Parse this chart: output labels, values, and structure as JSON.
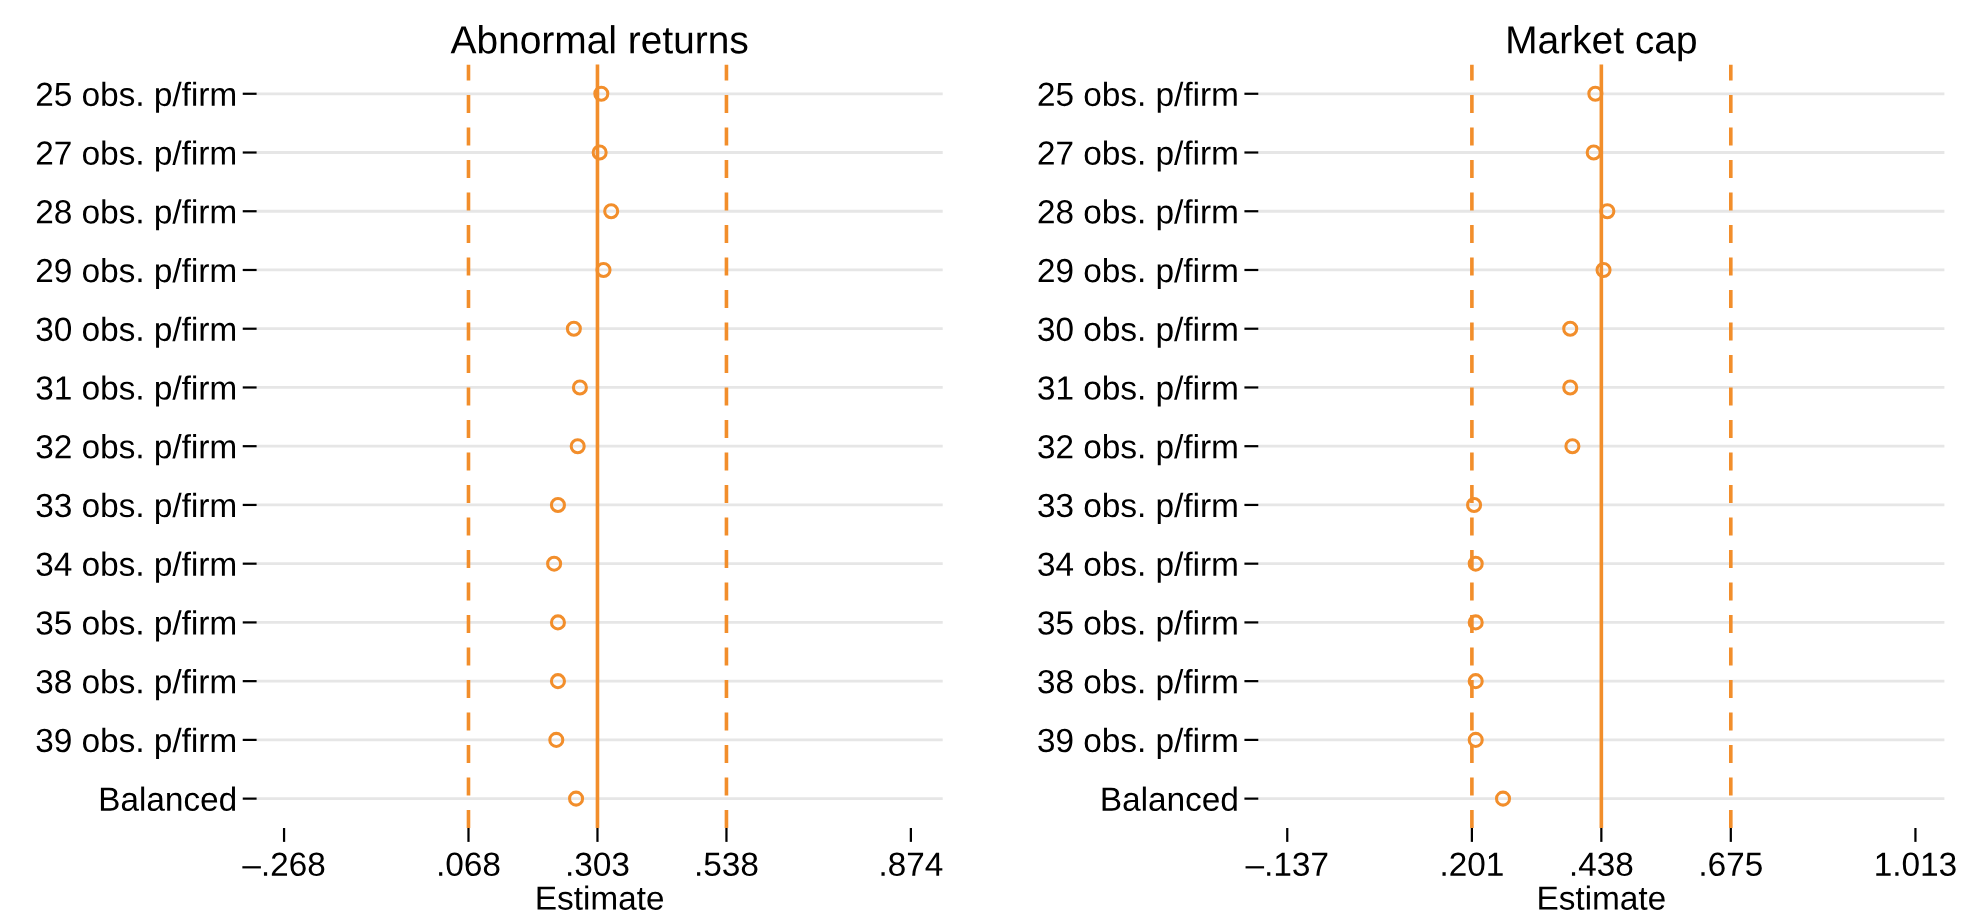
{
  "chart_data": [
    {
      "type": "scatter",
      "title": "Abnormal returns",
      "xlabel": "Estimate",
      "orientation": "horizontal",
      "marker": "circle",
      "grid": "y",
      "legend": false,
      "categories": [
        "25 obs. p/firm",
        "27 obs. p/firm",
        "28 obs. p/firm",
        "29 obs. p/firm",
        "30 obs. p/firm",
        "31 obs. p/firm",
        "32 obs. p/firm",
        "33 obs. p/firm",
        "34 obs. p/firm",
        "35 obs. p/firm",
        "38 obs. p/firm",
        "39 obs. p/firm",
        "Balanced"
      ],
      "series": [
        {
          "color": "#f28e2b",
          "values": [
            0.31,
            0.307,
            0.328,
            0.314,
            0.26,
            0.271,
            0.267,
            0.231,
            0.224,
            0.231,
            0.231,
            0.228,
            0.264
          ]
        }
      ],
      "xlim": [
        -0.318,
        0.932
      ],
      "xticks": [
        {
          "value": -0.268,
          "label": "–.268"
        },
        {
          "value": 0.068,
          "label": ".068"
        },
        {
          "value": 0.303,
          "label": ".303"
        },
        {
          "value": 0.538,
          "label": ".538"
        },
        {
          "value": 0.874,
          "label": ".874"
        }
      ],
      "ref_lines": [
        {
          "axis": "x",
          "value": 0.068,
          "color": "#f28e2b",
          "line_style": "dashed"
        },
        {
          "axis": "x",
          "value": 0.303,
          "color": "#f28e2b",
          "line_style": "solid"
        },
        {
          "axis": "x",
          "value": 0.538,
          "color": "#f28e2b",
          "line_style": "dashed"
        }
      ]
    },
    {
      "type": "scatter",
      "title": "Market cap",
      "xlabel": "Estimate",
      "orientation": "horizontal",
      "marker": "circle",
      "grid": "y",
      "legend": false,
      "categories": [
        "25 obs. p/firm",
        "27 obs. p/firm",
        "28 obs. p/firm",
        "29 obs. p/firm",
        "30 obs. p/firm",
        "31 obs. p/firm",
        "32 obs. p/firm",
        "33 obs. p/firm",
        "34 obs. p/firm",
        "35 obs. p/firm",
        "38 obs. p/firm",
        "39 obs. p/firm",
        "Balanced"
      ],
      "series": [
        {
          "color": "#f28e2b",
          "values": [
            0.427,
            0.424,
            0.449,
            0.442,
            0.381,
            0.381,
            0.385,
            0.205,
            0.208,
            0.208,
            0.208,
            0.208,
            0.258
          ]
        }
      ],
      "xlim": [
        -0.19,
        1.066
      ],
      "xticks": [
        {
          "value": -0.137,
          "label": "–.137"
        },
        {
          "value": 0.201,
          "label": ".201"
        },
        {
          "value": 0.438,
          "label": ".438"
        },
        {
          "value": 0.675,
          "label": ".675"
        },
        {
          "value": 1.013,
          "label": "1.013"
        }
      ],
      "ref_lines": [
        {
          "axis": "x",
          "value": 0.201,
          "color": "#f28e2b",
          "line_style": "dashed"
        },
        {
          "axis": "x",
          "value": 0.438,
          "color": "#f28e2b",
          "line_style": "solid"
        },
        {
          "axis": "x",
          "value": 0.675,
          "color": "#f28e2b",
          "line_style": "dashed"
        }
      ]
    }
  ]
}
